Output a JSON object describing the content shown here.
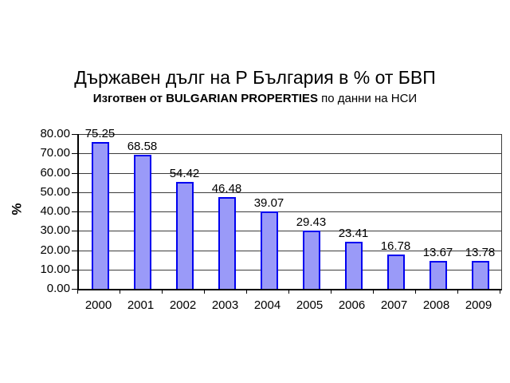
{
  "title": "Държавен дълг на Р България в % от БВП",
  "subtitle": {
    "bold": "Изготвен от BULGARIAN PROPERTIES",
    "normal": " по данни на НСИ"
  },
  "chart_data": {
    "type": "bar",
    "title": "Държавен дълг на Р България в % от БВП",
    "subtitle": "Изготвен от BULGARIAN PROPERTIES по данни на НСИ",
    "categories": [
      "2000",
      "2001",
      "2002",
      "2003",
      "2004",
      "2005",
      "2006",
      "2007",
      "2008",
      "2009"
    ],
    "values": [
      75.25,
      68.58,
      54.42,
      46.48,
      39.07,
      29.43,
      23.41,
      16.78,
      13.67,
      13.78
    ],
    "data_labels": [
      "75.25",
      "68.58",
      "54.42",
      "46.48",
      "39.07",
      "29.43",
      "23.41",
      "16.78",
      "13.67",
      "13.78"
    ],
    "xlabel": "",
    "ylabel": "%",
    "ylim": [
      0,
      80
    ],
    "ytick_step": 10,
    "ytick_labels": [
      "80.00",
      "70.00",
      "60.00",
      "50.00",
      "40.00",
      "30.00",
      "20.00",
      "10.00",
      "0.00"
    ],
    "grid": true,
    "legend": "none",
    "colors": {
      "bar_fill": "#9A9AF8",
      "bar_border": "#0000F0",
      "gridline": "#3C3C3C",
      "axis": "#000000",
      "background": "#FFFFFF",
      "text": "#000000"
    }
  }
}
